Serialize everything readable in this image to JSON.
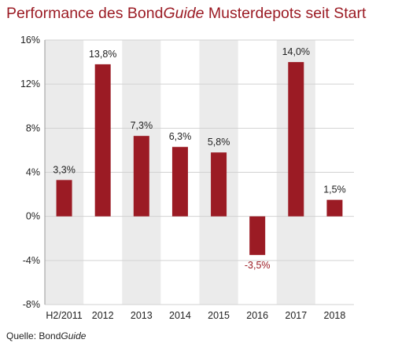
{
  "title": {
    "pre": "Performance des Bond",
    "italic": "Guide",
    "post": " Musterdepots seit Start"
  },
  "source": {
    "pre": "Quelle: Bond",
    "italic": "Guide"
  },
  "chart_data": {
    "type": "bar",
    "title": "Performance des BondGuide Musterdepots seit Start",
    "categories": [
      "H2/2011",
      "2012",
      "2013",
      "2014",
      "2015",
      "2016",
      "2017",
      "2018"
    ],
    "values": [
      3.3,
      13.8,
      7.3,
      6.3,
      5.8,
      -3.5,
      14.0,
      1.5
    ],
    "data_labels": [
      "3,3%",
      "13,8%",
      "7,3%",
      "6,3%",
      "5,8%",
      "-3,5%",
      "14,0%",
      "1,5%"
    ],
    "yticks": [
      16,
      12,
      8,
      4,
      0,
      -4,
      -8
    ],
    "ytick_labels": [
      "16%",
      "12%",
      "8%",
      "4%",
      "0%",
      "-4%",
      "-8%"
    ],
    "ylim": [
      -8,
      16
    ],
    "xlabel": "",
    "ylabel": "",
    "alternating_bands": true,
    "colors": {
      "bar": "#9b1b24",
      "band": "#ebebeb",
      "negative_label": "#9b1b24"
    }
  }
}
